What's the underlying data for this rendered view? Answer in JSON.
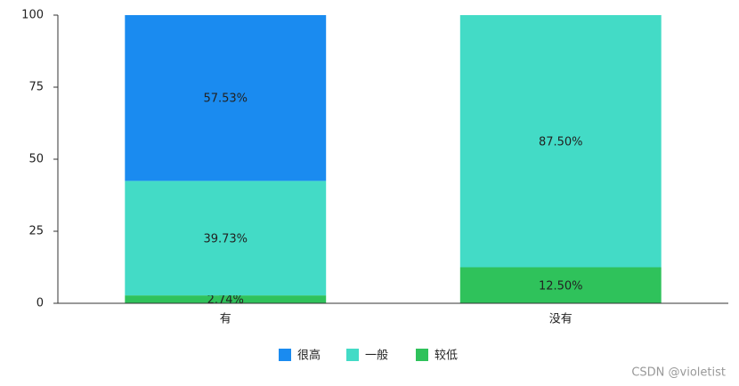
{
  "chart_data": {
    "type": "stacked_bar",
    "categories": [
      "有",
      "没有"
    ],
    "series": [
      {
        "name": "很高",
        "color": "#1a8bf0",
        "values": [
          57.53,
          0
        ],
        "value_labels": [
          "57.53%",
          null
        ]
      },
      {
        "name": "一般",
        "color": "#43dbc6",
        "values": [
          39.73,
          87.5
        ],
        "value_labels": [
          "39.73%",
          "87.50%"
        ]
      },
      {
        "name": "较低",
        "color": "#2fc25b",
        "values": [
          2.74,
          12.5
        ],
        "value_labels": [
          "2.74%",
          "12.50%"
        ]
      }
    ],
    "ylim": [
      0,
      100
    ],
    "yticks": [
      0,
      25,
      50,
      75,
      100
    ],
    "grid": false,
    "legend": "bottom",
    "watermark": "CSDN @violetist"
  }
}
